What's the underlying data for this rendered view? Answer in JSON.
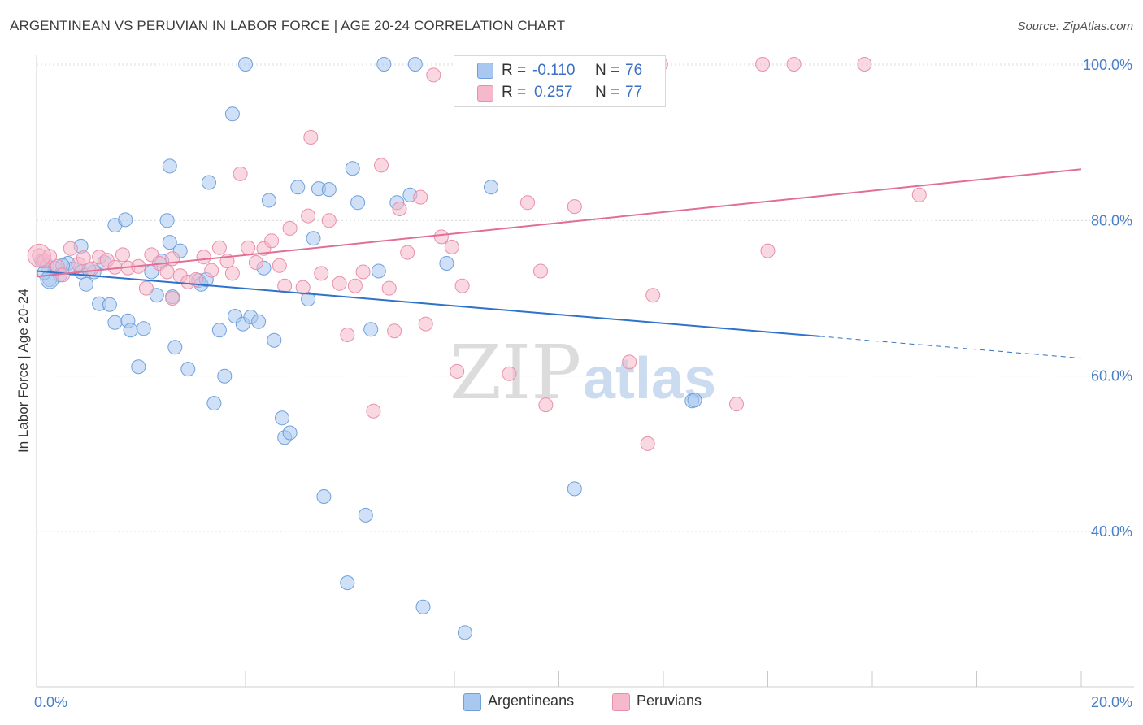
{
  "header": {
    "title": "ARGENTINEAN VS PERUVIAN IN LABOR FORCE | AGE 20-24 CORRELATION CHART",
    "source": "Source: ZipAtlas.com"
  },
  "watermark": {
    "zip": "ZIP",
    "atlas": "atlas"
  },
  "legend": {
    "rows": [
      {
        "r_label": "R = ",
        "r_value": "-0.110",
        "n_label": "N = ",
        "n_value": "76",
        "color": "#a9c8f0"
      },
      {
        "r_label": "R = ",
        "r_value": "0.257",
        "n_label": "N = ",
        "n_value": "77",
        "color": "#f6b8cb"
      }
    ]
  },
  "bottom_legend": {
    "a": "Argentineans",
    "b": "Peruvians"
  },
  "colors": {
    "blue_fill": "#a9c8f0",
    "blue_stroke": "#6fa0dc",
    "blue_line": "#2f72c9",
    "pink_fill": "#f6b8cb",
    "pink_stroke": "#e98fab",
    "pink_line": "#e26e95",
    "grid": "#dcdcdc",
    "tick_text": "#4a80c8"
  },
  "chart_data": {
    "type": "scatter",
    "title": "ARGENTINEAN VS PERUVIAN IN LABOR FORCE | AGE 20-24 CORRELATION CHART",
    "ylabel": "In Labor Force | Age 20-24",
    "xlabel": "",
    "xlim": [
      0,
      20
    ],
    "ylim": [
      20,
      102
    ],
    "x_tick_labels": [
      "0.0%",
      "20.0%"
    ],
    "y_ticks": [
      40,
      60,
      80,
      100
    ],
    "y_tick_labels": [
      "40.0%",
      "60.0%",
      "80.0%",
      "100.0%"
    ],
    "grid": true,
    "legend_position": "top-center",
    "series": [
      {
        "name": "Argentineans",
        "trend": {
          "x": [
            0,
            15
          ],
          "y": [
            73.5,
            65.1
          ],
          "dashed_to": [
            20,
            62.3
          ]
        },
        "points": [
          [
            0.1,
            74.8
          ],
          [
            0.2,
            74.2
          ],
          [
            0.25,
            72.4
          ],
          [
            0.35,
            73.9
          ],
          [
            0.45,
            73.0
          ],
          [
            0.6,
            74.5
          ],
          [
            0.7,
            73.8
          ],
          [
            0.85,
            73.4
          ],
          [
            0.95,
            71.8
          ],
          [
            0.85,
            76.7
          ],
          [
            1.1,
            73.4
          ],
          [
            1.3,
            74.6
          ],
          [
            1.5,
            79.4
          ],
          [
            1.7,
            80.1
          ],
          [
            1.2,
            69.3
          ],
          [
            1.4,
            69.2
          ],
          [
            1.5,
            66.9
          ],
          [
            1.75,
            67.1
          ],
          [
            1.8,
            65.9
          ],
          [
            2.05,
            66.1
          ],
          [
            1.95,
            61.2
          ],
          [
            2.2,
            73.4
          ],
          [
            2.3,
            70.4
          ],
          [
            2.4,
            74.8
          ],
          [
            2.5,
            80.0
          ],
          [
            2.55,
            77.2
          ],
          [
            2.6,
            70.2
          ],
          [
            2.55,
            87.0
          ],
          [
            2.65,
            63.7
          ],
          [
            2.9,
            60.9
          ],
          [
            2.75,
            76.1
          ],
          [
            3.1,
            72.3
          ],
          [
            3.15,
            71.8
          ],
          [
            3.3,
            84.9
          ],
          [
            3.4,
            56.5
          ],
          [
            3.5,
            65.9
          ],
          [
            3.6,
            60.0
          ],
          [
            3.75,
            93.7
          ],
          [
            3.8,
            67.7
          ],
          [
            3.95,
            66.7
          ],
          [
            4.1,
            67.6
          ],
          [
            4.25,
            67.0
          ],
          [
            4.0,
            100.1
          ],
          [
            4.35,
            73.9
          ],
          [
            4.45,
            82.6
          ],
          [
            4.55,
            64.6
          ],
          [
            4.7,
            54.6
          ],
          [
            4.75,
            52.1
          ],
          [
            4.85,
            52.7
          ],
          [
            5.0,
            84.3
          ],
          [
            5.2,
            69.9
          ],
          [
            5.3,
            77.7
          ],
          [
            5.5,
            44.5
          ],
          [
            5.4,
            84.1
          ],
          [
            5.6,
            84.0
          ],
          [
            5.95,
            33.4
          ],
          [
            6.05,
            86.7
          ],
          [
            6.15,
            82.3
          ],
          [
            6.3,
            42.1
          ],
          [
            6.4,
            66.0
          ],
          [
            6.55,
            73.5
          ],
          [
            6.65,
            100.1
          ],
          [
            6.9,
            82.3
          ],
          [
            7.15,
            83.3
          ],
          [
            7.25,
            100.1
          ],
          [
            7.4,
            30.3
          ],
          [
            7.85,
            74.5
          ],
          [
            8.2,
            27.0
          ],
          [
            8.7,
            84.3
          ],
          [
            10.3,
            45.5
          ],
          [
            12.55,
            56.8
          ],
          [
            12.6,
            56.9
          ],
          [
            0.15,
            73.3
          ],
          [
            0.5,
            74.2
          ],
          [
            1.0,
            73.7
          ],
          [
            3.25,
            72.4
          ]
        ]
      },
      {
        "name": "Peruvians",
        "trend": {
          "x": [
            0,
            20
          ],
          "y": [
            72.8,
            86.6
          ]
        },
        "points": [
          [
            0.05,
            75.5
          ],
          [
            0.15,
            74.8
          ],
          [
            0.25,
            75.4
          ],
          [
            0.4,
            74.1
          ],
          [
            0.5,
            73.0
          ],
          [
            0.65,
            76.4
          ],
          [
            0.8,
            74.4
          ],
          [
            0.9,
            75.2
          ],
          [
            1.05,
            73.8
          ],
          [
            1.2,
            75.3
          ],
          [
            1.35,
            74.9
          ],
          [
            1.5,
            74.0
          ],
          [
            1.65,
            75.6
          ],
          [
            1.75,
            73.9
          ],
          [
            1.95,
            74.1
          ],
          [
            2.1,
            71.3
          ],
          [
            2.2,
            75.6
          ],
          [
            2.35,
            74.5
          ],
          [
            2.5,
            73.4
          ],
          [
            2.6,
            75.1
          ],
          [
            2.6,
            70.0
          ],
          [
            2.75,
            72.9
          ],
          [
            2.9,
            72.1
          ],
          [
            3.05,
            72.4
          ],
          [
            3.2,
            75.3
          ],
          [
            3.35,
            73.6
          ],
          [
            3.5,
            76.5
          ],
          [
            3.65,
            74.8
          ],
          [
            3.75,
            73.2
          ],
          [
            3.9,
            86.0
          ],
          [
            4.05,
            76.5
          ],
          [
            4.2,
            74.6
          ],
          [
            4.35,
            76.4
          ],
          [
            4.5,
            77.4
          ],
          [
            4.65,
            74.2
          ],
          [
            4.75,
            71.6
          ],
          [
            4.85,
            79.0
          ],
          [
            5.1,
            71.4
          ],
          [
            5.2,
            80.6
          ],
          [
            5.25,
            90.7
          ],
          [
            5.45,
            73.2
          ],
          [
            5.6,
            80.0
          ],
          [
            5.8,
            71.9
          ],
          [
            5.95,
            65.3
          ],
          [
            6.1,
            71.6
          ],
          [
            6.25,
            73.4
          ],
          [
            6.45,
            55.5
          ],
          [
            6.6,
            87.1
          ],
          [
            6.75,
            71.3
          ],
          [
            6.85,
            65.8
          ],
          [
            6.95,
            81.5
          ],
          [
            7.1,
            75.9
          ],
          [
            7.35,
            83.0
          ],
          [
            7.45,
            66.7
          ],
          [
            7.6,
            98.7
          ],
          [
            7.75,
            77.9
          ],
          [
            7.95,
            76.6
          ],
          [
            8.15,
            71.6
          ],
          [
            8.05,
            60.6
          ],
          [
            8.35,
            100.1
          ],
          [
            9.05,
            60.3
          ],
          [
            9.4,
            82.3
          ],
          [
            9.65,
            73.5
          ],
          [
            9.75,
            56.3
          ],
          [
            10.3,
            81.8
          ],
          [
            11.0,
            100.1
          ],
          [
            11.35,
            61.8
          ],
          [
            11.7,
            51.3
          ],
          [
            11.95,
            100.1
          ],
          [
            11.8,
            70.4
          ],
          [
            13.4,
            56.4
          ],
          [
            13.9,
            100.1
          ],
          [
            14.5,
            100.1
          ],
          [
            15.85,
            100.1
          ],
          [
            16.9,
            83.3
          ],
          [
            14.0,
            76.1
          ],
          [
            8.3,
            100.1
          ]
        ]
      }
    ]
  }
}
